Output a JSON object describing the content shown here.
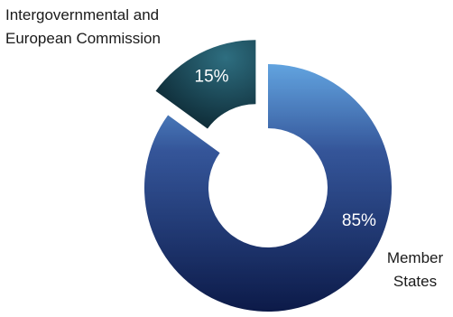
{
  "chart_data": {
    "type": "pie",
    "style": "donut",
    "categories": [
      "Intergovernmental and European Commission",
      "Member States"
    ],
    "values": [
      15,
      85
    ],
    "data_labels": [
      "15%",
      "85%"
    ],
    "category_label_lines": [
      [
        "Intergovernmental and",
        "European Commission"
      ],
      [
        "Member",
        "States"
      ]
    ],
    "exploded_slice": "Intergovernmental and European Commission",
    "legend": "none"
  },
  "colors": {
    "intergovernmental_dark": "#0b2530",
    "intergovernmental_light": "#2e6e80",
    "member_states_top": "#3f8fd8",
    "member_states_mid": "#1a3f8c",
    "member_states_bottom": "#0c1a48",
    "label_text": "#1a1a1a",
    "data_label_text": "#ffffff"
  }
}
